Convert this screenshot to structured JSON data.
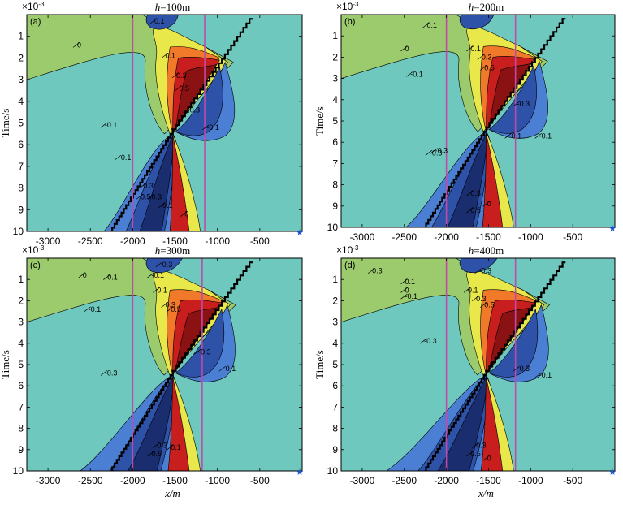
{
  "colors": {
    "bg": "#6fc8bd",
    "pos1": "#9ccb6e",
    "pos2": "#e8e84a",
    "pos3": "#f07a2a",
    "pos4": "#c81e1e",
    "pos5": "#8a1212",
    "neg1": "#4a7fd4",
    "neg2": "#2d52a8",
    "neg3": "#1a2d6e",
    "marker_line": "#c04aa8",
    "star": "#2255cc"
  },
  "figure": {
    "xlabel": "x/m",
    "ylabel": "Time/s",
    "y_multiplier": "×10",
    "y_multiplier_exp": "-3"
  },
  "chart_data": [
    {
      "type": "heatmap",
      "panel": "(a)",
      "title_var": "h",
      "title_value": "=100m",
      "xlim": [
        -3250,
        0
      ],
      "ylim": [
        0,
        10
      ],
      "y_reversed": true,
      "x_ticks": [
        "-3000",
        "-2500",
        "-2000",
        "-1500",
        "-1000",
        "-500"
      ],
      "y_ticks": [
        "1",
        "2",
        "3",
        "4",
        "5",
        "6",
        "7",
        "8",
        "9",
        "10"
      ],
      "vertical_lines_x": [
        -2000,
        -1150
      ],
      "contour_labels": [
        "0",
        "0.1",
        "-0.1",
        "0.1",
        "0.3",
        "0.5",
        "-0.3",
        "-0.1",
        "-0.1",
        "0.3",
        "0.5",
        "0.3",
        "0.1",
        "0"
      ]
    },
    {
      "type": "heatmap",
      "panel": "(b)",
      "title_var": "h",
      "title_value": "=200m",
      "xlim": [
        -3250,
        0
      ],
      "ylim": [
        0,
        10
      ],
      "y_reversed": true,
      "x_ticks": [
        "-3000",
        "-2500",
        "-2000",
        "-1500",
        "-1000",
        "-500"
      ],
      "y_ticks": [
        "1",
        "2",
        "3",
        "4",
        "5",
        "6",
        "7",
        "8",
        "9",
        "10"
      ],
      "vertical_lines_x": [
        -2000,
        -1180
      ],
      "contour_labels": [
        "0.1",
        "0",
        "-0.1",
        "-0.3",
        "0.1",
        "0.3",
        "0.5",
        "-0.1",
        "-0.3",
        "-0.1",
        "-0.3",
        "0.3",
        "0.5",
        "0"
      ]
    },
    {
      "type": "heatmap",
      "panel": "(c)",
      "title_var": "h",
      "title_value": "=300m",
      "xlim": [
        -3250,
        0
      ],
      "ylim": [
        0,
        10
      ],
      "y_reversed": true,
      "x_ticks": [
        "-3000",
        "-2500",
        "-2000",
        "-1500",
        "-1000",
        "-500"
      ],
      "y_ticks": [
        "1",
        "2",
        "3",
        "4",
        "5",
        "6",
        "7",
        "8",
        "9",
        "10"
      ],
      "vertical_lines_x": [
        -2000,
        -1180
      ],
      "contour_labels": [
        "-0.3",
        "-0.1",
        "0.1",
        "0",
        "-0.1",
        "0.1",
        "0.3",
        "0.5",
        "-0.3",
        "-0.1",
        "-0.3",
        "0.3",
        "0.5",
        "0.1"
      ]
    },
    {
      "type": "heatmap",
      "panel": "(d)",
      "title_var": "h",
      "title_value": "=400m",
      "xlim": [
        -3250,
        0
      ],
      "ylim": [
        0,
        10
      ],
      "y_reversed": true,
      "x_ticks": [
        "-3000",
        "-2500",
        "-2000",
        "-1500",
        "-1000",
        "-500"
      ],
      "y_ticks": [
        "1",
        "2",
        "3",
        "4",
        "5",
        "6",
        "7",
        "8",
        "9",
        "10"
      ],
      "vertical_lines_x": [
        -2000,
        -1180
      ],
      "contour_labels": [
        "0.3",
        "-0.3",
        "0.1",
        "0",
        "-0.1",
        "0.1",
        "0.3",
        "0.5",
        "-0.3",
        "-0.3",
        "-0.1",
        "0.3",
        "0.5",
        "0"
      ]
    }
  ]
}
